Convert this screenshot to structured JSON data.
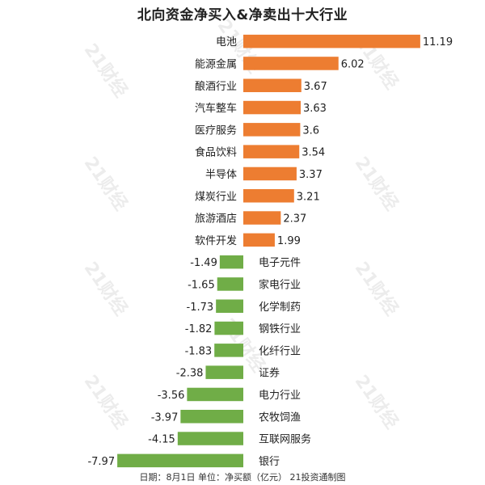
{
  "watermark": "21财经",
  "footer": "日期：8月1日 单位：净买额（亿元） 21投资通制图",
  "chart_data": {
    "type": "bar",
    "orientation": "horizontal",
    "title": "北向资金净买入&净卖出十大行业",
    "categories": [
      "电池",
      "能源金属",
      "酿酒行业",
      "汽车整车",
      "医疗服务",
      "食品饮料",
      "半导体",
      "煤炭行业",
      "旅游酒店",
      "软件开发",
      "电子元件",
      "家电行业",
      "化学制药",
      "钢铁行业",
      "化纤行业",
      "证券",
      "电力行业",
      "农牧饲渔",
      "互联网服务",
      "银行"
    ],
    "values": [
      11.19,
      6.02,
      3.67,
      3.63,
      3.6,
      3.54,
      3.37,
      3.21,
      2.37,
      1.99,
      -1.49,
      -1.65,
      -1.73,
      -1.82,
      -1.83,
      -2.38,
      -3.56,
      -3.97,
      -4.15,
      -7.97
    ],
    "value_labels": [
      "11.19",
      "6.02",
      "3.67",
      "3.63",
      "3.6",
      "3.54",
      "3.37",
      "3.21",
      "2.37",
      "1.99",
      "-1.49",
      "-1.65",
      "-1.73",
      "-1.82",
      "-1.83",
      "-2.38",
      "-3.56",
      "-3.97",
      "-4.15",
      "-7.97"
    ],
    "colors": {
      "positive": "#ED7D31",
      "negative": "#70AD47"
    },
    "grid": false,
    "legend": "none"
  }
}
